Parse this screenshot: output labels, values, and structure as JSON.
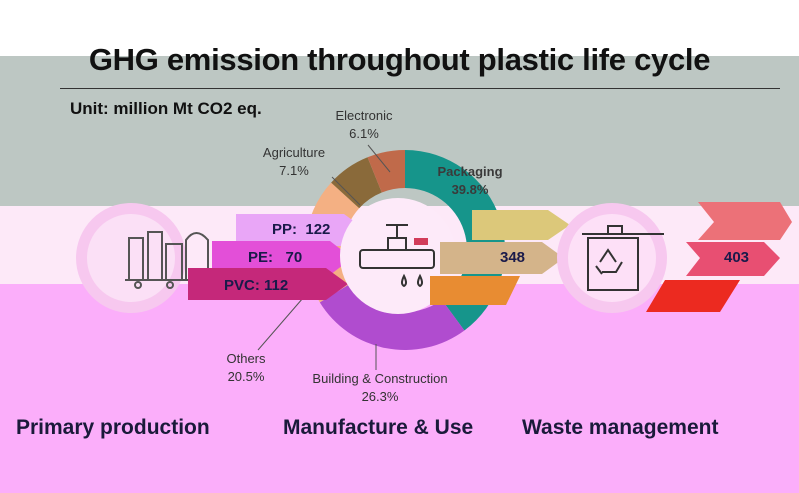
{
  "title": "GHG emission throughout plastic life cycle",
  "unit": "Unit: million Mt CO2 eq.",
  "donut": {
    "segments": [
      {
        "label": "Packaging",
        "pct": "39.8%",
        "value": 39.8,
        "color": "#16958b"
      },
      {
        "label": "Building & Construction",
        "pct": "26.3%",
        "value": 26.3,
        "color": "#b04ccf"
      },
      {
        "label": "Others",
        "pct": "20.5%",
        "value": 20.5,
        "color": "#f4b083"
      },
      {
        "label": "Agriculture",
        "pct": "7.1%",
        "value": 7.1,
        "color": "#8a6a3a"
      },
      {
        "label": "Electronic",
        "pct": "6.1%",
        "value": 6.1,
        "color": "#c06a4a"
      }
    ]
  },
  "primary": {
    "items": [
      {
        "name": "PP:",
        "value": "122"
      },
      {
        "name": "PE:",
        "value": "70"
      },
      {
        "name": "PVC:",
        "value": "112"
      }
    ]
  },
  "manufacture_value": "348",
  "waste_value": "403",
  "stages": {
    "primary": "Primary production",
    "manufacture": "Manufacture & Use",
    "waste": "Waste management"
  }
}
